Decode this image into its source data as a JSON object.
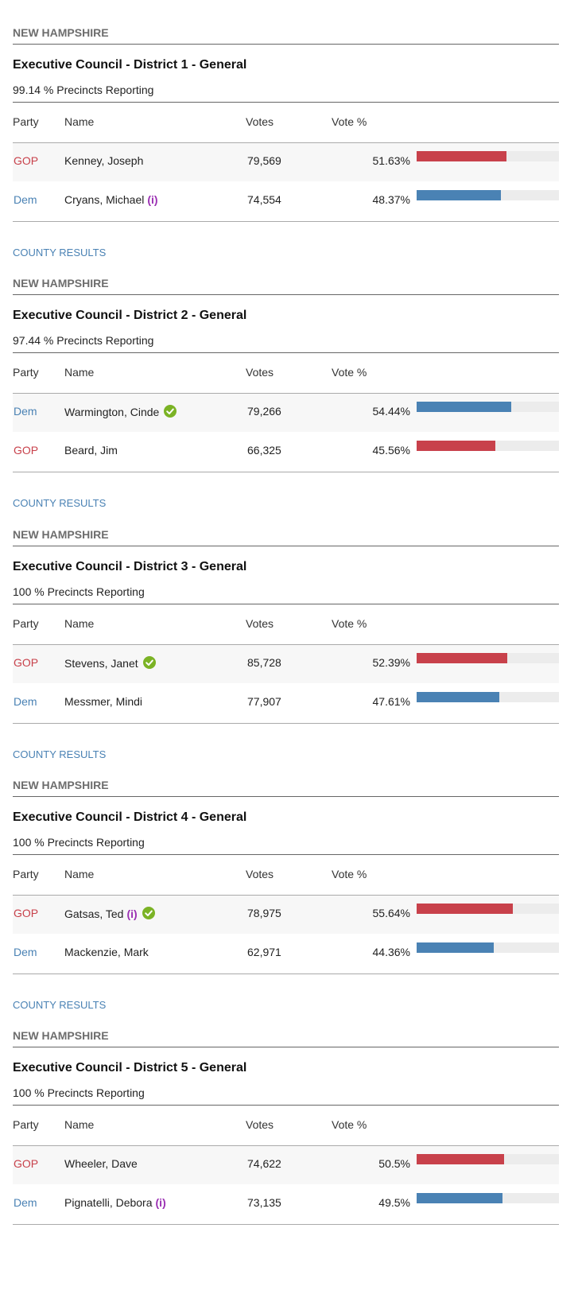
{
  "races": [
    {
      "state": "NEW HAMPSHIRE",
      "title": "Executive Council - District 1 - General",
      "reporting": "99.14 % Precincts Reporting",
      "headers": [
        "Party",
        "Name",
        "Votes",
        "Vote %"
      ],
      "rows": [
        {
          "party": "GOP",
          "name": "Kenney, Joseph",
          "votes": "79,569",
          "vote_pct": 51.63,
          "vote_pct_label": "51.63%"
        },
        {
          "party": "Dem",
          "name": "Cryans, Michael",
          "incumbent": "(i)",
          "votes": "74,554",
          "vote_pct": 48.37,
          "vote_pct_label": "48.37%"
        }
      ],
      "county_results": "COUNTY RESULTS"
    },
    {
      "state": "NEW HAMPSHIRE",
      "title": "Executive Council - District 2 - General",
      "reporting": "97.44 % Precincts Reporting",
      "headers": [
        "Party",
        "Name",
        "Votes",
        "Vote %"
      ],
      "rows": [
        {
          "party": "Dem",
          "name": "Warmington, Cinde",
          "winner": true,
          "votes": "79,266",
          "vote_pct": 54.44,
          "vote_pct_label": "54.44%"
        },
        {
          "party": "GOP",
          "name": "Beard, Jim",
          "votes": "66,325",
          "vote_pct": 45.56,
          "vote_pct_label": "45.56%"
        }
      ],
      "county_results": "COUNTY RESULTS"
    },
    {
      "state": "NEW HAMPSHIRE",
      "title": "Executive Council - District 3 - General",
      "reporting": "100 % Precincts Reporting",
      "headers": [
        "Party",
        "Name",
        "Votes",
        "Vote %"
      ],
      "rows": [
        {
          "party": "GOP",
          "name": "Stevens, Janet",
          "winner": true,
          "votes": "85,728",
          "vote_pct": 52.39,
          "vote_pct_label": "52.39%"
        },
        {
          "party": "Dem",
          "name": "Messmer, Mindi",
          "votes": "77,907",
          "vote_pct": 47.61,
          "vote_pct_label": "47.61%"
        }
      ],
      "county_results": "COUNTY RESULTS"
    },
    {
      "state": "NEW HAMPSHIRE",
      "title": "Executive Council - District 4 - General",
      "reporting": "100 % Precincts Reporting",
      "headers": [
        "Party",
        "Name",
        "Votes",
        "Vote %"
      ],
      "rows": [
        {
          "party": "GOP",
          "name": "Gatsas, Ted",
          "incumbent": "(i)",
          "winner": true,
          "votes": "78,975",
          "vote_pct": 55.64,
          "vote_pct_label": "55.64%"
        },
        {
          "party": "Dem",
          "name": "Mackenzie, Mark",
          "votes": "62,971",
          "vote_pct": 44.36,
          "vote_pct_label": "44.36%"
        }
      ],
      "county_results": "COUNTY RESULTS"
    },
    {
      "state": "NEW HAMPSHIRE",
      "title": "Executive Council - District 5 - General",
      "reporting": "100 % Precincts Reporting",
      "headers": [
        "Party",
        "Name",
        "Votes",
        "Vote %"
      ],
      "rows": [
        {
          "party": "GOP",
          "name": "Wheeler, Dave",
          "votes": "74,622",
          "vote_pct": 50.5,
          "vote_pct_label": "50.5%"
        },
        {
          "party": "Dem",
          "name": "Pignatelli, Debora",
          "incumbent": "(i)",
          "votes": "73,135",
          "vote_pct": 49.5,
          "vote_pct_label": "49.5%"
        }
      ]
    }
  ],
  "party_colors": {
    "GOP": "#c8414b",
    "Dem": "#4a82b4"
  },
  "bar_xlim": [
    0,
    82
  ]
}
